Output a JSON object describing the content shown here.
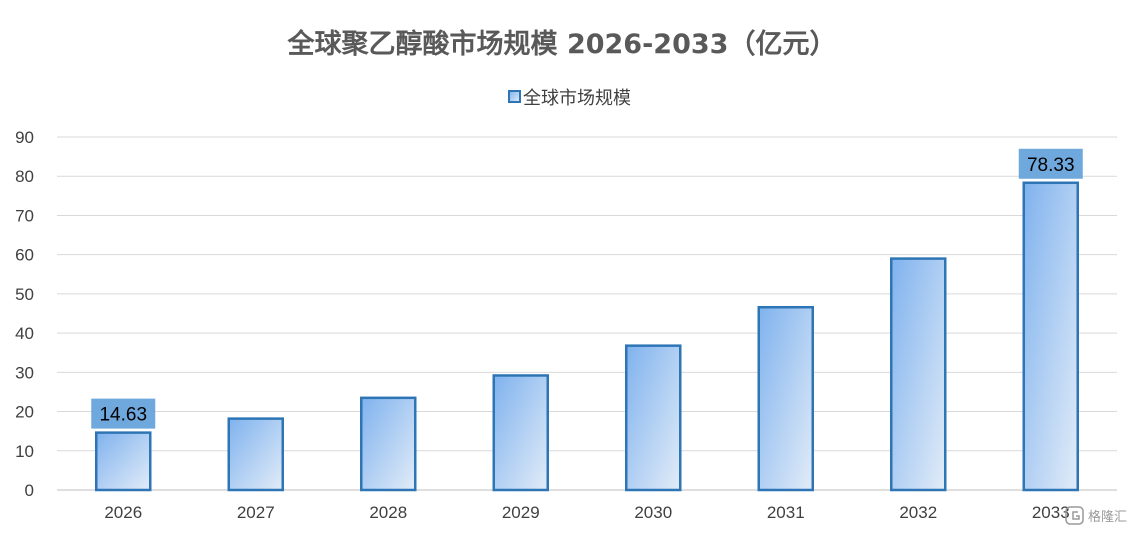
{
  "chart_data": {
    "type": "bar",
    "title": "全球聚乙醇酸市场规模 2026-2033（亿元）",
    "categories": [
      "2026",
      "2027",
      "2028",
      "2029",
      "2030",
      "2031",
      "2032",
      "2033"
    ],
    "series": [
      {
        "name": "全球市场规模",
        "values": [
          14.63,
          18.2,
          23.5,
          29.2,
          36.8,
          46.6,
          59.0,
          78.33
        ]
      }
    ],
    "data_labels": [
      {
        "index": 0,
        "text": "14.63"
      },
      {
        "index": 7,
        "text": "78.33"
      }
    ],
    "ylim": [
      0,
      90
    ],
    "yticks": [
      0,
      10,
      20,
      30,
      40,
      50,
      60,
      70,
      80,
      90
    ],
    "grid": true,
    "legend": "top-center"
  },
  "watermark": {
    "text": "格隆汇"
  },
  "colors": {
    "bar_stroke": "#2e75b6",
    "bar_fill_start": "#7fb2ee",
    "bar_fill_end": "#e2ecf8",
    "label_box": "#6fa8dc",
    "grid": "#d9d9d9",
    "title": "#595959"
  }
}
